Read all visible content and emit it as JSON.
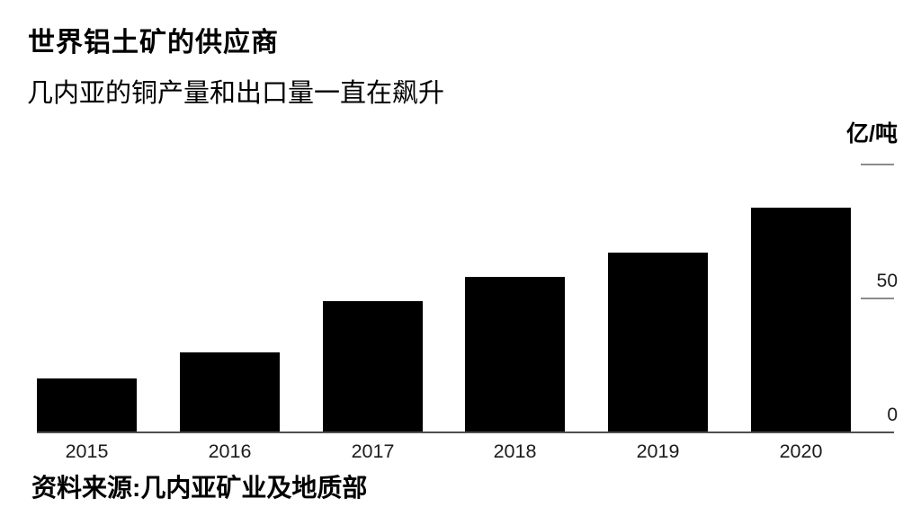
{
  "header": {
    "title": "世界铝土矿的供应商",
    "subtitle": "几内亚的铜产量和出口量一直在飙升"
  },
  "footer": {
    "source": "资料来源:几内亚矿业及地质部"
  },
  "chart_data": {
    "type": "bar",
    "title": "世界铝土矿的供应商",
    "subtitle": "几内亚的铜产量和出口量一直在飙升",
    "categories": [
      "2015",
      "2016",
      "2017",
      "2018",
      "2019",
      "2020"
    ],
    "values": [
      20,
      30,
      49,
      58,
      67,
      84
    ],
    "xlabel": "",
    "ylabel": "亿/吨",
    "ylim": [
      0,
      100
    ],
    "yticks": [
      0,
      50,
      100
    ],
    "ytick_labels": [
      "0",
      "50",
      ""
    ],
    "axis_side": "right",
    "grid": false,
    "legend_position": "none",
    "source": "资料来源:几内亚矿业及地质部"
  },
  "colors": {
    "background": "#ffffff",
    "bar": "#000000",
    "axis_line": "#4f4f4f",
    "tick_line": "#8c8c8c",
    "tick_label": "#1b1b1b",
    "x_label": "#1b1b1b"
  }
}
